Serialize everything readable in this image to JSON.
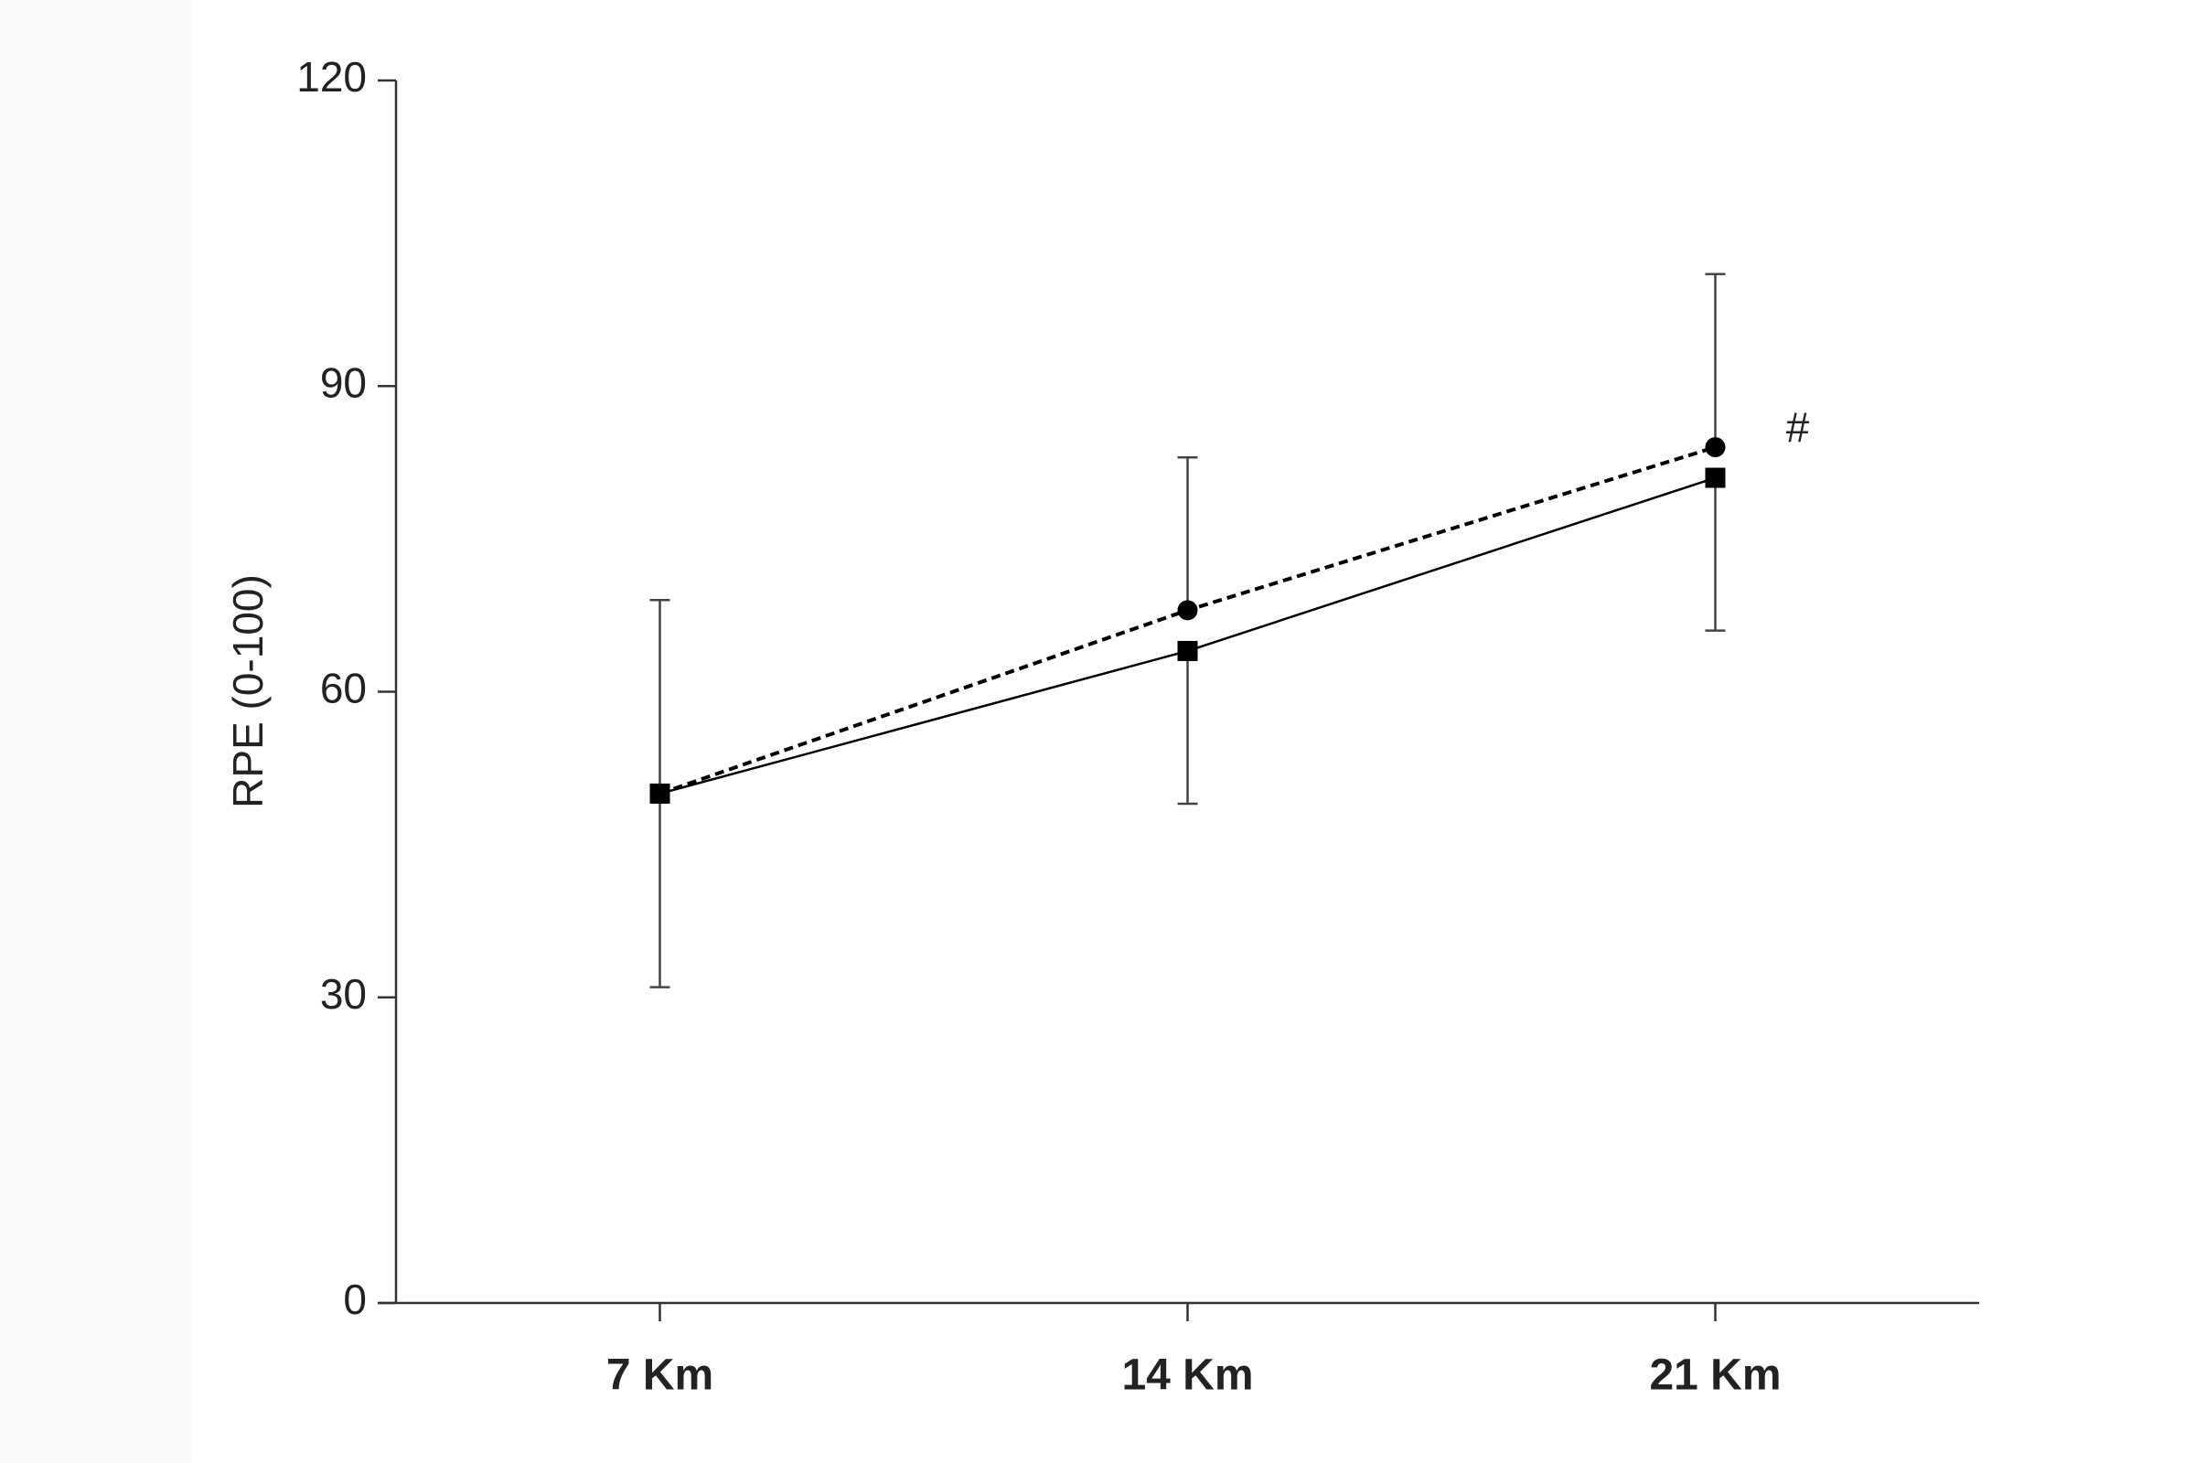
{
  "chart_data": {
    "type": "line",
    "y_label": "RPE (0-100)",
    "categories": [
      "7 Km",
      "14 Km",
      "21 Km"
    ],
    "series": [
      {
        "color": "#000000",
        "marker": "circle",
        "dashed": true,
        "values": [
          50,
          68,
          84
        ],
        "errors": [
          19,
          15,
          17
        ],
        "error_direction": "up"
      },
      {
        "color": "#000000",
        "marker": "square",
        "dashed": false,
        "values": [
          50,
          64,
          81
        ],
        "errors": [
          19,
          15,
          15
        ],
        "error_direction": "down"
      }
    ],
    "annotation": "#",
    "ylim": [
      0,
      120
    ],
    "yticks": [
      0,
      30,
      60,
      90,
      120
    ],
    "grid": false
  }
}
